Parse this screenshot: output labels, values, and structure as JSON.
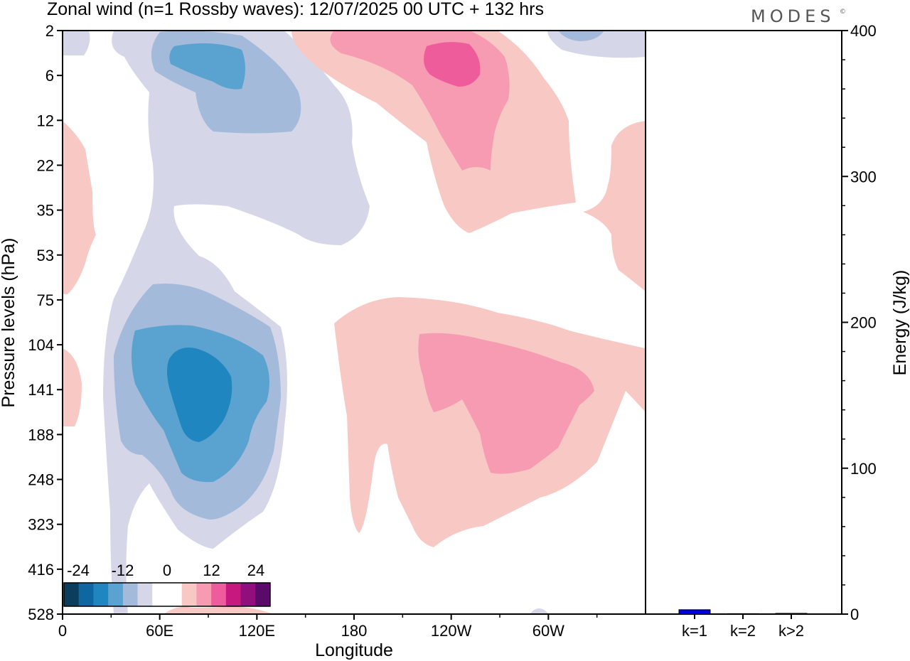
{
  "chart_data": [
    {
      "type": "heatmap",
      "title": "Zonal wind (n=1 Rossby waves):  12/07/2025  00 UTC  + 132 hrs",
      "xlabel": "Longitude",
      "ylabel": "Pressure levels (hPa)",
      "x_ticks": [
        {
          "label": "0",
          "lon": 0
        },
        {
          "label": "60E",
          "lon": 60
        },
        {
          "label": "120E",
          "lon": 120
        },
        {
          "label": "180",
          "lon": 180
        },
        {
          "label": "120W",
          "lon": 240
        },
        {
          "label": "60W",
          "lon": 300
        }
      ],
      "xlim": [
        0,
        360
      ],
      "y_levels": [
        2,
        6,
        12,
        22,
        35,
        53,
        75,
        104,
        141,
        188,
        248,
        323,
        416,
        528
      ],
      "colorbar": {
        "tick_labels": [
          "-24",
          "-12",
          "0",
          "12",
          "24"
        ],
        "colors": [
          "#0b3d5c",
          "#0e67a0",
          "#1f86c0",
          "#5aa2cf",
          "#a4bada",
          "#d5d7e8",
          "#ffffff",
          "#ffffff",
          "#f8c9c4",
          "#f79bb2",
          "#ef5c9c",
          "#c7187f",
          "#900f7d",
          "#5a0a6a"
        ]
      },
      "regions": [
        {
          "name": "neg-1",
          "value": -6,
          "color": "#d5d7e8"
        },
        {
          "name": "neg-2",
          "value": -6,
          "color": "#d5d7e8"
        },
        {
          "name": "neg-3",
          "value": -6,
          "color": "#d5d7e8"
        },
        {
          "name": "neg-4",
          "value": -6,
          "color": "#d5d7e8"
        },
        {
          "name": "neg-5",
          "value": -6,
          "color": "#d5d7e8"
        },
        {
          "name": "neg-6",
          "value": -6,
          "color": "#d5d7e8"
        },
        {
          "name": "neg-7",
          "value": -9,
          "color": "#a4bada"
        },
        {
          "name": "neg-8",
          "value": -9,
          "color": "#a4bada"
        },
        {
          "name": "neg-9",
          "value": -9,
          "color": "#a4bada"
        },
        {
          "name": "neg-10",
          "value": -12,
          "color": "#5aa2cf"
        },
        {
          "name": "neg-11",
          "value": -12,
          "color": "#5aa2cf"
        },
        {
          "name": "neg-12",
          "value": -15,
          "color": "#1f86c0"
        },
        {
          "name": "pos-1",
          "value": 6,
          "color": "#f8c9c4"
        },
        {
          "name": "pos-2",
          "value": 6,
          "color": "#f8c9c4"
        },
        {
          "name": "pos-3",
          "value": 6,
          "color": "#f8c9c4"
        },
        {
          "name": "pos-4",
          "value": 6,
          "color": "#f8c9c4"
        },
        {
          "name": "pos-5",
          "value": 6,
          "color": "#f8c9c4"
        },
        {
          "name": "pos-6",
          "value": 6,
          "color": "#f8c9c4"
        },
        {
          "name": "pos-7",
          "value": 9,
          "color": "#f79bb2"
        },
        {
          "name": "pos-8",
          "value": 9,
          "color": "#f79bb2"
        },
        {
          "name": "pos-9",
          "value": 12,
          "color": "#ef5c9c"
        }
      ]
    },
    {
      "type": "bar",
      "ylabel": "Energy (J/kg)",
      "ylim": [
        0,
        400
      ],
      "y_ticks": [
        0,
        100,
        200,
        300,
        400
      ],
      "categories": [
        "k=1",
        "k=2",
        "k>2"
      ],
      "values": [
        3,
        0.3,
        0.5
      ],
      "bar_color": "#0000e0"
    }
  ],
  "branding": {
    "logo_text": "MODES",
    "logo_mark": "©"
  }
}
